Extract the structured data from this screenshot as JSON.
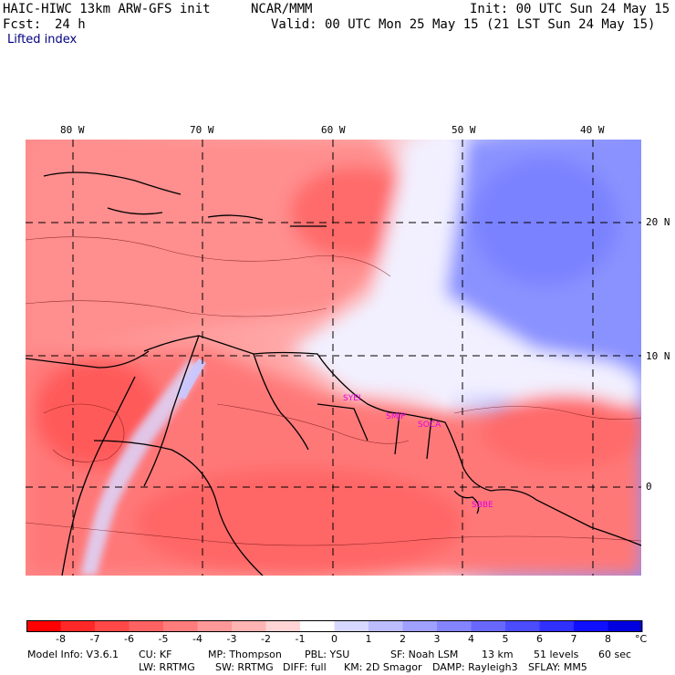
{
  "header": {
    "title_left": "HAIC-HIWC 13km ARW-GFS init",
    "title_mid": "NCAR/MMM",
    "init": "Init: 00 UTC Sun 24 May 15",
    "fcst_label": "Fcst:",
    "fcst_value": "24 h",
    "valid": "Valid: 00 UTC Mon 25 May 15 (21 LST Sun 24 May 15)",
    "field": "Lifted index"
  },
  "map": {
    "lon_labels": [
      "80 W",
      "70 W",
      "60 W",
      "50 W",
      "40 W"
    ],
    "lat_labels": [
      "20 N",
      "10 N",
      "0"
    ],
    "stations": [
      "SYEI",
      "SMJP",
      "SOCA",
      "SBBE"
    ],
    "station_color": "#e000e0"
  },
  "colorbar": {
    "ticks": [
      "-8",
      "-7",
      "-6",
      "-5",
      "-4",
      "-3",
      "-2",
      "-1",
      "0",
      "1",
      "2",
      "3",
      "4",
      "5",
      "6",
      "7",
      "8"
    ],
    "unit": "°C",
    "colors": [
      "#ff0000",
      "#ff2828",
      "#ff4848",
      "#ff6262",
      "#ff7c7c",
      "#ff9898",
      "#ffb4b4",
      "#ffd4d4",
      "#ffffff",
      "#d8d8ff",
      "#bcbcff",
      "#a0a0ff",
      "#8484ff",
      "#6868ff",
      "#4c4cff",
      "#3030ff",
      "#1010ff",
      "#0000e0"
    ]
  },
  "footer": {
    "line1": [
      {
        "label": "Model Info: V3.6.1"
      },
      {
        "label": "CU: KF"
      },
      {
        "label": "MP: Thompson"
      },
      {
        "label": "PBL: YSU"
      },
      {
        "label": "SF: Noah LSM"
      },
      {
        "label": "13 km"
      },
      {
        "label": "51 levels"
      },
      {
        "label": "60 sec"
      }
    ],
    "line2": [
      {
        "label": "LW: RRTMG"
      },
      {
        "label": "SW: RRTMG"
      },
      {
        "label": "DIFF: full"
      },
      {
        "label": "KM: 2D Smagor"
      },
      {
        "label": "DAMP: Rayleigh3"
      },
      {
        "label": "SFLAY: MM5"
      }
    ]
  }
}
